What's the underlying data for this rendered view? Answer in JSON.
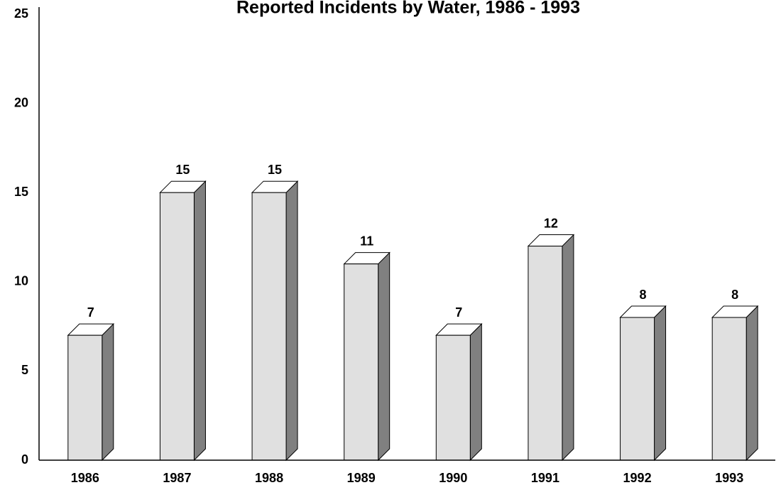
{
  "chart_data": {
    "type": "bar3d",
    "title": "Reported Incidents by Water, 1986 - 1993",
    "categories": [
      "1986",
      "1987",
      "1988",
      "1989",
      "1990",
      "1991",
      "1992",
      "1993"
    ],
    "values": [
      7,
      15,
      15,
      11,
      7,
      12,
      8,
      8
    ],
    "color": "#e0e0e0",
    "side_color": "#808080",
    "top_color": "#ffffff",
    "ylim": [
      0,
      25
    ],
    "yticks": [
      0,
      5,
      10,
      15,
      20,
      25
    ],
    "grid": false
  }
}
